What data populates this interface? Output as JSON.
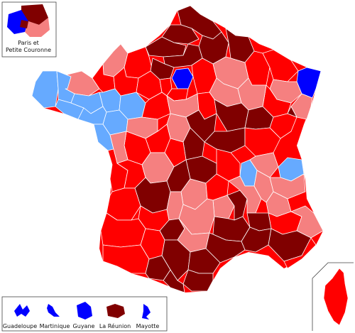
{
  "colors": {
    "dark_red": "#800000",
    "red": "#ff0000",
    "salmon": "#f58080",
    "light_blue": "#66aaff",
    "blue": "#0000ff"
  },
  "insets": {
    "paris": {
      "label_line1": "Paris et",
      "label_line2": "Petite Couronne"
    },
    "overseas": [
      {
        "name": "Guadeloupe",
        "color": "blue"
      },
      {
        "name": "Martinique",
        "color": "blue"
      },
      {
        "name": "Guyane",
        "color": "blue"
      },
      {
        "name": "La Réunion",
        "color": "dark_red"
      },
      {
        "name": "Mayotte",
        "color": "blue"
      }
    ],
    "corsica": {
      "color": "red"
    }
  }
}
